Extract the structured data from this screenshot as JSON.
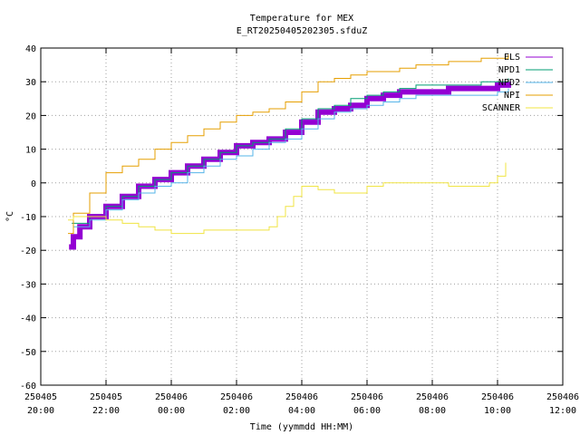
{
  "chart_data": {
    "type": "line",
    "title": "Temperature for MEX",
    "subtitle": "E_RT20250405202305.sfduZ",
    "xlabel": "Time (yymmdd HH:MM)",
    "ylabel": "°C",
    "xlim": [
      "2025-04-05 20:00",
      "2025-04-06 12:00"
    ],
    "ylim": [
      -60,
      40
    ],
    "grid": true,
    "legend_position": "top-right",
    "x_ticks": [
      {
        "date": "250405",
        "time": "20:00"
      },
      {
        "date": "250405",
        "time": "22:00"
      },
      {
        "date": "250406",
        "time": "00:00"
      },
      {
        "date": "250406",
        "time": "02:00"
      },
      {
        "date": "250406",
        "time": "04:00"
      },
      {
        "date": "250406",
        "time": "06:00"
      },
      {
        "date": "250406",
        "time": "08:00"
      },
      {
        "date": "250406",
        "time": "10:00"
      },
      {
        "date": "250406",
        "time": "12:00"
      }
    ],
    "y_ticks": [
      40,
      30,
      20,
      10,
      0,
      -10,
      -20,
      -30,
      -40,
      -50,
      -60
    ],
    "series": [
      {
        "name": "ELS",
        "color": "#9400d3",
        "width": 6,
        "x": [
          "2025-04-05 20:52",
          "2025-04-05 21:00",
          "2025-04-05 21:12",
          "2025-04-05 21:30",
          "2025-04-05 22:00",
          "2025-04-05 22:30",
          "2025-04-05 23:00",
          "2025-04-05 23:30",
          "2025-04-06 00:00",
          "2025-04-06 00:30",
          "2025-04-06 01:00",
          "2025-04-06 01:30",
          "2025-04-06 02:00",
          "2025-04-06 02:30",
          "2025-04-06 03:00",
          "2025-04-06 03:30",
          "2025-04-06 04:00",
          "2025-04-06 04:30",
          "2025-04-06 05:00",
          "2025-04-06 05:30",
          "2025-04-06 06:00",
          "2025-04-06 06:30",
          "2025-04-06 07:00",
          "2025-04-06 07:30",
          "2025-04-06 08:00",
          "2025-04-06 08:30",
          "2025-04-06 09:00",
          "2025-04-06 09:30",
          "2025-04-06 10:00",
          "2025-04-06 10:20"
        ],
        "y": [
          -19,
          -16,
          -13,
          -10,
          -7,
          -4,
          -1,
          1,
          3,
          5,
          7,
          9,
          11,
          12,
          13,
          15,
          18,
          21,
          22,
          23,
          25,
          26,
          27,
          27,
          27,
          28,
          28,
          28,
          29,
          30
        ]
      },
      {
        "name": "NPD1",
        "color": "#009e73",
        "width": 1,
        "x": [
          "2025-04-05 20:57",
          "2025-04-05 21:10",
          "2025-04-05 21:30",
          "2025-04-05 22:00",
          "2025-04-05 22:30",
          "2025-04-05 23:00",
          "2025-04-05 23:30",
          "2025-04-06 00:00",
          "2025-04-06 00:30",
          "2025-04-06 01:00",
          "2025-04-06 01:30",
          "2025-04-06 02:00",
          "2025-04-06 02:30",
          "2025-04-06 03:00",
          "2025-04-06 03:30",
          "2025-04-06 04:00",
          "2025-04-06 04:30",
          "2025-04-06 05:00",
          "2025-04-06 05:30",
          "2025-04-06 06:00",
          "2025-04-06 06:30",
          "2025-04-06 07:00",
          "2025-04-06 07:30",
          "2025-04-06 08:00",
          "2025-04-06 08:30",
          "2025-04-06 09:00",
          "2025-04-06 09:30",
          "2025-04-06 10:00",
          "2025-04-06 10:20"
        ],
        "y": [
          -12,
          -12,
          -10,
          -7,
          -4,
          -1,
          1,
          3,
          5,
          7,
          9,
          11,
          12,
          13,
          16,
          19,
          22,
          23,
          25,
          26,
          27,
          28,
          29,
          29,
          29,
          29,
          30,
          30,
          31
        ]
      },
      {
        "name": "NPD2",
        "color": "#56b4e9",
        "width": 1,
        "x": [
          "2025-04-05 21:00",
          "2025-04-05 21:30",
          "2025-04-05 22:00",
          "2025-04-05 22:30",
          "2025-04-05 23:00",
          "2025-04-05 23:30",
          "2025-04-06 00:00",
          "2025-04-06 00:30",
          "2025-04-06 01:00",
          "2025-04-06 01:30",
          "2025-04-06 02:00",
          "2025-04-06 02:30",
          "2025-04-06 03:00",
          "2025-04-06 03:30",
          "2025-04-06 04:00",
          "2025-04-06 04:30",
          "2025-04-06 05:00",
          "2025-04-06 05:30",
          "2025-04-06 06:00",
          "2025-04-06 06:30",
          "2025-04-06 07:00",
          "2025-04-06 07:30",
          "2025-04-06 08:00",
          "2025-04-06 08:30",
          "2025-04-06 09:00",
          "2025-04-06 09:30",
          "2025-04-06 10:00",
          "2025-04-06 10:20"
        ],
        "y": [
          -13,
          -11,
          -8,
          -5,
          -3,
          -1,
          0,
          3,
          5,
          7,
          8,
          10,
          12,
          13,
          16,
          19,
          21,
          22,
          23,
          24,
          25,
          26,
          26,
          26,
          26,
          26,
          27,
          28
        ]
      },
      {
        "name": "NPI",
        "color": "#e69f00",
        "width": 1,
        "x": [
          "2025-04-05 20:50",
          "2025-04-05 21:00",
          "2025-04-05 21:30",
          "2025-04-05 22:00",
          "2025-04-05 22:30",
          "2025-04-05 23:00",
          "2025-04-05 23:30",
          "2025-04-06 00:00",
          "2025-04-06 00:30",
          "2025-04-06 01:00",
          "2025-04-06 01:30",
          "2025-04-06 02:00",
          "2025-04-06 02:30",
          "2025-04-06 03:00",
          "2025-04-06 03:30",
          "2025-04-06 04:00",
          "2025-04-06 04:30",
          "2025-04-06 05:00",
          "2025-04-06 05:30",
          "2025-04-06 06:00",
          "2025-04-06 06:30",
          "2025-04-06 07:00",
          "2025-04-06 07:30",
          "2025-04-06 08:00",
          "2025-04-06 08:30",
          "2025-04-06 09:00",
          "2025-04-06 09:30",
          "2025-04-06 10:00",
          "2025-04-06 10:20"
        ],
        "y": [
          -15,
          -9,
          -3,
          3,
          5,
          7,
          10,
          12,
          14,
          16,
          18,
          20,
          21,
          22,
          24,
          27,
          30,
          31,
          32,
          33,
          33,
          34,
          35,
          35,
          36,
          36,
          37,
          37,
          38
        ]
      },
      {
        "name": "SCANNER",
        "color": "#f0e442",
        "width": 1,
        "x": [
          "2025-04-05 20:50",
          "2025-04-05 21:00",
          "2025-04-05 21:30",
          "2025-04-05 22:00",
          "2025-04-05 22:30",
          "2025-04-05 23:00",
          "2025-04-05 23:30",
          "2025-04-06 00:00",
          "2025-04-06 00:30",
          "2025-04-06 01:00",
          "2025-04-06 01:30",
          "2025-04-06 02:00",
          "2025-04-06 02:30",
          "2025-04-06 03:00",
          "2025-04-06 03:15",
          "2025-04-06 03:30",
          "2025-04-06 03:45",
          "2025-04-06 04:00",
          "2025-04-06 04:30",
          "2025-04-06 05:00",
          "2025-04-06 05:30",
          "2025-04-06 06:00",
          "2025-04-06 06:30",
          "2025-04-06 07:00",
          "2025-04-06 07:30",
          "2025-04-06 08:00",
          "2025-04-06 08:30",
          "2025-04-06 09:00",
          "2025-04-06 09:30",
          "2025-04-06 09:45",
          "2025-04-06 10:00",
          "2025-04-06 10:15"
        ],
        "y": [
          -11,
          -10,
          -10,
          -11,
          -12,
          -13,
          -14,
          -15,
          -15,
          -14,
          -14,
          -14,
          -14,
          -13,
          -10,
          -7,
          -4,
          -1,
          -2,
          -3,
          -3,
          -1,
          0,
          0,
          0,
          0,
          -1,
          -1,
          -1,
          0,
          2,
          6
        ]
      }
    ]
  }
}
